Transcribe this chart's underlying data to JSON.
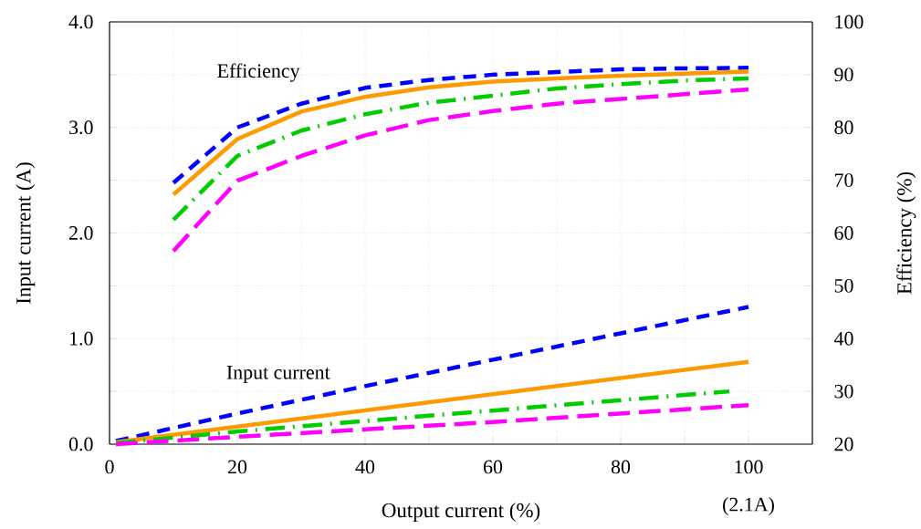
{
  "chart_data": {
    "type": "line",
    "xlabel": "Output current (%)",
    "ylabel": "Input current (A)",
    "y2label": "Efficiency (%)",
    "annotations": [
      "Efficiency",
      "Input current",
      "(2.1A)"
    ],
    "xlim": [
      0,
      110
    ],
    "ylim": [
      0,
      4
    ],
    "y2lim": [
      20,
      100
    ],
    "xticks": [
      0,
      {
        "value": 10,
        "label": null
      },
      20,
      {
        "value": 30,
        "label": null
      },
      40,
      {
        "value": 50,
        "label": null
      },
      60,
      {
        "value": 70,
        "label": null
      },
      80,
      {
        "value": 90,
        "label": null
      },
      100
    ],
    "yticks": [
      {
        "value": 0,
        "label": "0.0"
      },
      {
        "value": 0.5,
        "label": null
      },
      {
        "value": 1,
        "label": "1.0"
      },
      {
        "value": 1.5,
        "label": null
      },
      {
        "value": 2,
        "label": "2.0"
      },
      {
        "value": 2.5,
        "label": null
      },
      {
        "value": 3,
        "label": "3.0"
      },
      {
        "value": 3.5,
        "label": null
      },
      {
        "value": 4,
        "label": "4.0"
      }
    ],
    "y2ticks": [
      20,
      30,
      40,
      50,
      60,
      70,
      80,
      90,
      100
    ],
    "grid": true,
    "marker": "none",
    "series": [
      {
        "color": "#0000ff",
        "line_style": "dashed",
        "axis": "y2",
        "x": [
          10,
          20,
          30,
          40,
          50,
          60,
          70,
          80,
          90,
          100
        ],
        "values": [
          69.5,
          80,
          84.5,
          87.5,
          89,
          90,
          90.5,
          91,
          91.2,
          91.3
        ]
      },
      {
        "color": "#ff9900",
        "line_style": "solid",
        "axis": "y2",
        "x": [
          10,
          20,
          30,
          40,
          50,
          60,
          70,
          80,
          90,
          100
        ],
        "values": [
          67.3,
          77.8,
          83,
          85.8,
          87.6,
          88.7,
          89.3,
          89.8,
          90.2,
          90.6
        ]
      },
      {
        "color": "#00cc00",
        "line_style": "dashdot",
        "axis": "y2",
        "x": [
          10,
          20,
          30,
          40,
          50,
          60,
          70,
          80,
          90,
          100
        ],
        "values": [
          62.5,
          74.6,
          79.4,
          82.5,
          84.7,
          86,
          87.4,
          88.2,
          88.9,
          89.3
        ]
      },
      {
        "color": "#ff00ff",
        "line_style": "longdashed",
        "axis": "y2",
        "x": [
          10,
          20,
          30,
          40,
          50,
          60,
          70,
          80,
          90,
          100
        ],
        "values": [
          56.6,
          69.9,
          74.6,
          78.5,
          81.4,
          83.1,
          84.5,
          85.4,
          86.3,
          87.2
        ]
      },
      {
        "color": "#0000ff",
        "line_style": "dashed",
        "axis": "y",
        "x": [
          1,
          20,
          40,
          60,
          80,
          100
        ],
        "values": [
          0.03,
          0.29,
          0.55,
          0.8,
          1.05,
          1.3
        ]
      },
      {
        "color": "#ff9900",
        "line_style": "solid",
        "axis": "y",
        "x": [
          1,
          100
        ],
        "values": [
          0.02,
          0.78
        ]
      },
      {
        "color": "#00cc00",
        "line_style": "dashdot",
        "axis": "y",
        "x": [
          1,
          20,
          50,
          97
        ],
        "values": [
          0.01,
          0.12,
          0.27,
          0.5
        ]
      },
      {
        "color": "#ff00ff",
        "line_style": "longdashed",
        "axis": "y",
        "x": [
          1,
          20,
          60,
          100
        ],
        "values": [
          0.0,
          0.07,
          0.21,
          0.37
        ]
      }
    ]
  }
}
